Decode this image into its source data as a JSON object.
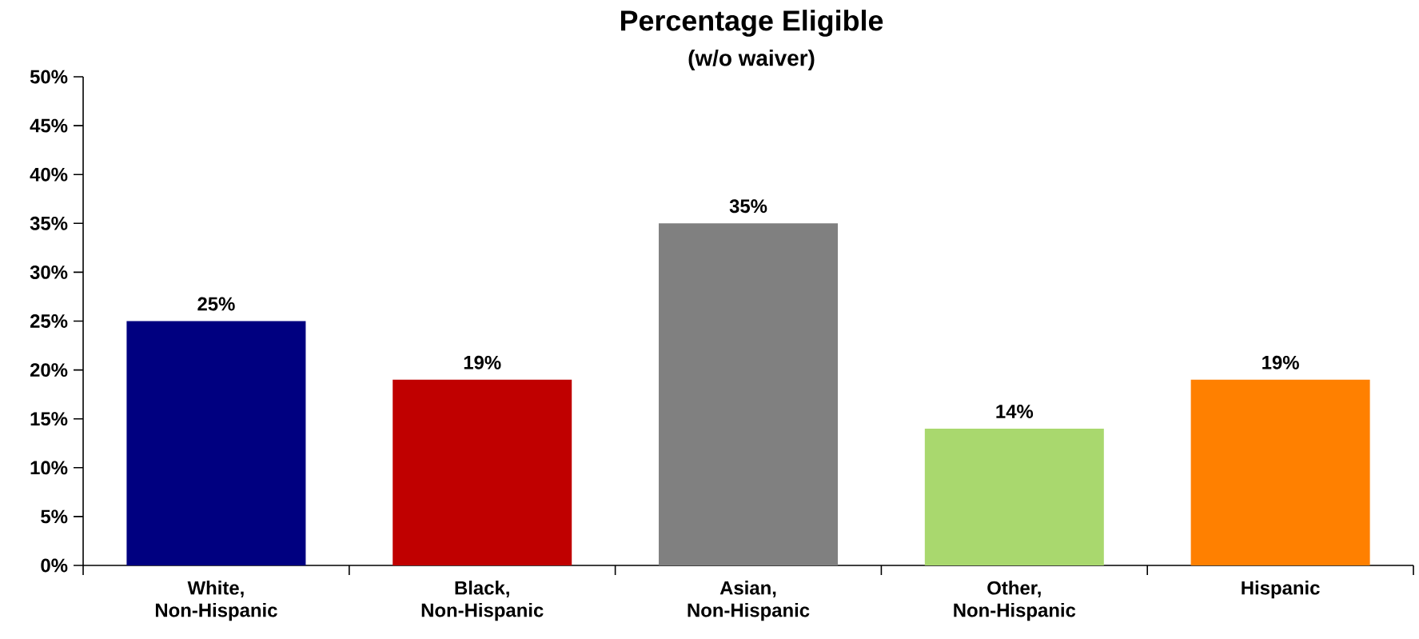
{
  "chart_data": {
    "type": "bar",
    "title": "Percentage Eligible",
    "subtitle": "(w/o waiver)",
    "categories": [
      "White, Non-Hispanic",
      "Black, Non-Hispanic",
      "Asian, Non-Hispanic",
      "Other, Non-Hispanic",
      "Hispanic"
    ],
    "values": [
      25,
      19,
      35,
      14,
      19
    ],
    "colors": [
      "#000080",
      "#c00000",
      "#808080",
      "#a9d86e",
      "#ff8000"
    ],
    "value_labels": [
      "25%",
      "19%",
      "35%",
      "14%",
      "19%"
    ],
    "ylim": [
      0,
      50
    ],
    "yticks": [
      {
        "value": 0,
        "label": "0%"
      },
      {
        "value": 5,
        "label": "5%"
      },
      {
        "value": 10,
        "label": "10%"
      },
      {
        "value": 15,
        "label": "15%"
      },
      {
        "value": 20,
        "label": "20%"
      },
      {
        "value": 25,
        "label": "25%"
      },
      {
        "value": 30,
        "label": "30%"
      },
      {
        "value": 35,
        "label": "35%"
      },
      {
        "value": 40,
        "label": "40%"
      },
      {
        "value": 45,
        "label": "45%"
      },
      {
        "value": 50,
        "label": "50%"
      }
    ],
    "grid": false
  }
}
